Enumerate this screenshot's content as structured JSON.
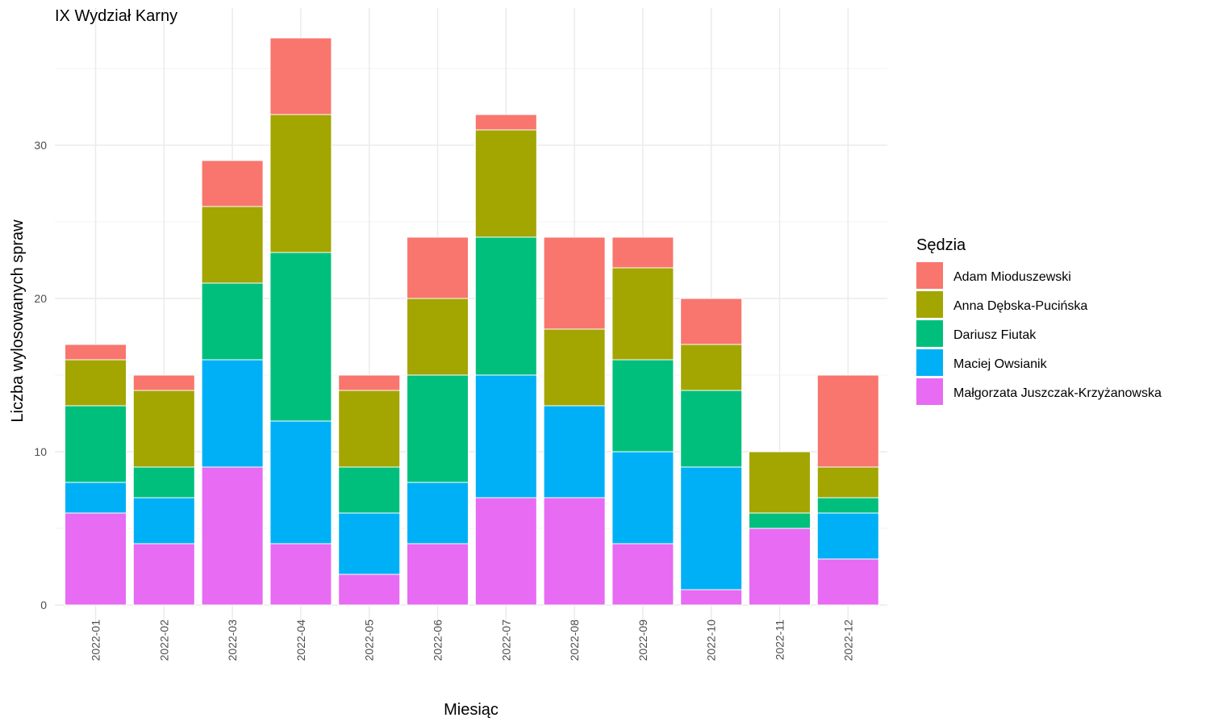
{
  "chart_data": {
    "type": "bar",
    "stacked": true,
    "title": "IX Wydział Karny",
    "xlabel": "Miesiąc",
    "ylabel": "Liczba wylosowanych spraw",
    "ylim": [
      0,
      37
    ],
    "yticks": [
      0,
      10,
      20,
      30
    ],
    "grid": true,
    "legend_position": "right",
    "legend_title": "Sędzia",
    "categories": [
      "2022-01",
      "2022-02",
      "2022-03",
      "2022-04",
      "2022-05",
      "2022-06",
      "2022-07",
      "2022-08",
      "2022-09",
      "2022-10",
      "2022-11",
      "2022-12"
    ],
    "series": [
      {
        "name": "Adam Mioduszewski",
        "color": "#F8766D",
        "values": [
          1,
          1,
          3,
          5,
          1,
          4,
          1,
          6,
          2,
          3,
          0,
          6
        ]
      },
      {
        "name": "Anna Dębska-Pucińska",
        "color": "#A3A500",
        "values": [
          3,
          5,
          5,
          9,
          5,
          5,
          7,
          5,
          6,
          3,
          4,
          2
        ]
      },
      {
        "name": "Dariusz Fiutak",
        "color": "#00BF7D",
        "values": [
          5,
          2,
          5,
          11,
          3,
          7,
          9,
          0,
          6,
          5,
          1,
          1
        ]
      },
      {
        "name": "Maciej Owsianik",
        "color": "#00B0F6",
        "values": [
          2,
          3,
          7,
          8,
          4,
          4,
          8,
          6,
          6,
          8,
          0,
          3
        ]
      },
      {
        "name": "Małgorzata Juszczak-Krzyżanowska",
        "color": "#E76BF3",
        "values": [
          6,
          4,
          9,
          4,
          2,
          4,
          7,
          7,
          4,
          1,
          5,
          3
        ]
      }
    ]
  }
}
